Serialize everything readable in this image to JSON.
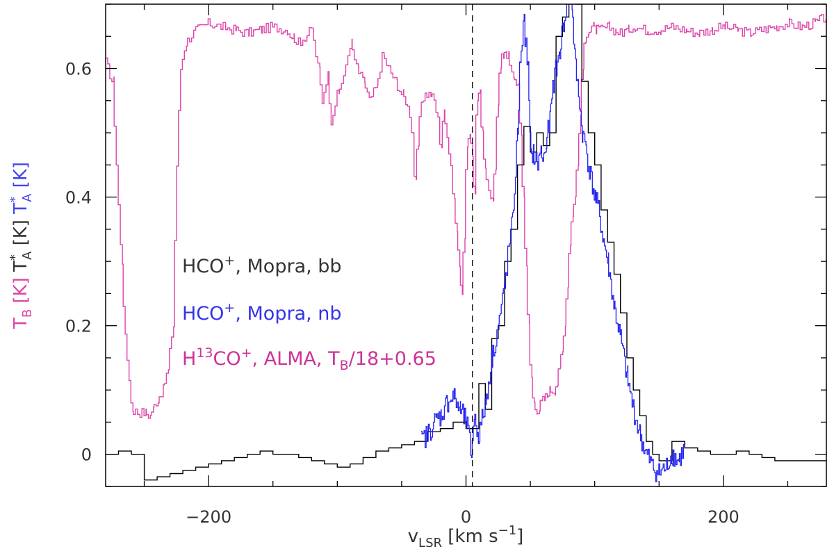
{
  "chart_data": {
    "type": "line",
    "xlim": [
      -280,
      280
    ],
    "ylim": [
      -0.05,
      0.7
    ],
    "step_plot": true,
    "grid": false,
    "legend_placement": "middle-left, inside plot",
    "x_ticks": [
      -200,
      0,
      200
    ],
    "x_tick_labels": [
      "−200",
      "0",
      "200"
    ],
    "y_ticks": [
      0,
      0.2,
      0.4,
      0.6
    ],
    "y_tick_labels": [
      "0",
      "0.2",
      "0.4",
      "0.6"
    ],
    "xlabel": {
      "base": "v",
      "sub": "LSR",
      "mid": " [km s",
      "sup": "−1",
      "end": "]"
    },
    "ylabel_parts": [
      {
        "base": "T",
        "sub": "B",
        "unit": " [K] ",
        "color": "#dd44aa"
      },
      {
        "base": "T",
        "sup": "*",
        "sub": "A",
        "unit": " [K] ",
        "color": "#333333"
      },
      {
        "base": "T",
        "sup": "*",
        "sub": "A",
        "unit": " [K]",
        "color": "#4444ee"
      }
    ],
    "vline": {
      "x": 5,
      "style": "dashed",
      "color": "#000000"
    },
    "legend": [
      {
        "pre": "HCO",
        "sup": "+",
        "post": ", Mopra, bb",
        "color": "#333333"
      },
      {
        "pre": "HCO",
        "sup": "+",
        "post": ", Mopra, nb",
        "color": "#3333ee"
      },
      {
        "pre": "H",
        "sup": "13",
        "mid": "CO",
        "sup2": "+",
        "post": ", ALMA, T",
        "sub": "B",
        "tail": "/18+0.65",
        "color": "#cc3399"
      }
    ],
    "series": [
      {
        "color": "#dd44aa",
        "x": [
          -280,
          -275,
          -268,
          -265,
          -262,
          -260,
          -255,
          -250,
          -246,
          -244,
          -240,
          -236,
          -232,
          -228,
          -225,
          -222,
          -218,
          -210,
          -200,
          -190,
          -180,
          -170,
          -160,
          -150,
          -140,
          -135,
          -130,
          -125,
          -120,
          -115,
          -112,
          -108,
          -105,
          -100,
          -95,
          -90,
          -85,
          -80,
          -75,
          -70,
          -65,
          -60,
          -55,
          -50,
          -47,
          -44,
          -42,
          -40,
          -38,
          -35,
          -32,
          -28,
          -25,
          -22,
          -20,
          -18,
          -15,
          -12,
          -10,
          -8,
          -6,
          -4,
          -2,
          0,
          2,
          4,
          6,
          8,
          10,
          12,
          14,
          16,
          18,
          20,
          22,
          24,
          26,
          28,
          30,
          32,
          34,
          36,
          38,
          40,
          42,
          44,
          46,
          48,
          50,
          52,
          54,
          56,
          58,
          60,
          62,
          64,
          66,
          68,
          70,
          72,
          74,
          76,
          78,
          80,
          82,
          84,
          86,
          88,
          90,
          92,
          94,
          96,
          98,
          100,
          105,
          110,
          115,
          120,
          125,
          130,
          140,
          150,
          160,
          170,
          180,
          190,
          200,
          210,
          220,
          230,
          240,
          250,
          260,
          270,
          280
        ],
        "y": [
          0.61,
          0.58,
          0.3,
          0.18,
          0.12,
          0.07,
          0.065,
          0.065,
          0.06,
          0.07,
          0.085,
          0.1,
          0.13,
          0.2,
          0.45,
          0.6,
          0.64,
          0.66,
          0.67,
          0.665,
          0.66,
          0.655,
          0.66,
          0.665,
          0.66,
          0.65,
          0.64,
          0.65,
          0.66,
          0.6,
          0.55,
          0.59,
          0.52,
          0.56,
          0.59,
          0.64,
          0.6,
          0.58,
          0.55,
          0.57,
          0.62,
          0.6,
          0.58,
          0.56,
          0.55,
          0.53,
          0.5,
          0.42,
          0.48,
          0.55,
          0.56,
          0.56,
          0.55,
          0.52,
          0.48,
          0.53,
          0.5,
          0.45,
          0.4,
          0.35,
          0.3,
          0.25,
          0.33,
          0.48,
          0.5,
          0.47,
          0.4,
          0.55,
          0.57,
          0.5,
          0.45,
          0.42,
          0.4,
          0.39,
          0.45,
          0.55,
          0.6,
          0.62,
          0.63,
          0.62,
          0.6,
          0.59,
          0.58,
          0.57,
          0.5,
          0.4,
          0.3,
          0.2,
          0.12,
          0.08,
          0.07,
          0.07,
          0.08,
          0.085,
          0.09,
          0.1,
          0.1,
          0.1,
          0.11,
          0.13,
          0.16,
          0.2,
          0.26,
          0.33,
          0.37,
          0.4,
          0.45,
          0.52,
          0.6,
          0.64,
          0.66,
          0.66,
          0.665,
          0.66,
          0.66,
          0.665,
          0.66,
          0.655,
          0.66,
          0.665,
          0.66,
          0.66,
          0.665,
          0.66,
          0.655,
          0.66,
          0.665,
          0.66,
          0.655,
          0.66,
          0.665,
          0.67,
          0.665,
          0.67,
          0.68
        ],
        "noise": 0.008
      },
      {
        "color": "#000000",
        "x": [
          -280,
          -270,
          -260,
          -250,
          -240,
          -230,
          -220,
          -210,
          -200,
          -190,
          -180,
          -170,
          -160,
          -150,
          -140,
          -130,
          -120,
          -110,
          -100,
          -90,
          -80,
          -70,
          -60,
          -50,
          -40,
          -30,
          -20,
          -10,
          0,
          10,
          15,
          20,
          25,
          30,
          35,
          40,
          45,
          50,
          55,
          60,
          65,
          70,
          75,
          80,
          85,
          90,
          95,
          100,
          105,
          110,
          115,
          120,
          125,
          130,
          135,
          140,
          145,
          150,
          160,
          170,
          180,
          190,
          200,
          210,
          220,
          230,
          240,
          250,
          260,
          270,
          280
        ],
        "y": [
          0.0,
          0.005,
          0.0,
          -0.04,
          -0.035,
          -0.03,
          -0.025,
          -0.02,
          -0.015,
          -0.01,
          -0.005,
          0.0,
          0.005,
          0.0,
          0.0,
          -0.005,
          -0.01,
          -0.015,
          -0.02,
          -0.015,
          -0.005,
          0.005,
          0.01,
          0.015,
          0.02,
          0.035,
          0.04,
          0.05,
          0.04,
          0.11,
          0.07,
          0.18,
          0.2,
          0.3,
          0.35,
          0.45,
          0.51,
          0.47,
          0.5,
          0.48,
          0.5,
          0.65,
          0.68,
          0.72,
          0.7,
          0.58,
          0.5,
          0.45,
          0.38,
          0.33,
          0.28,
          0.22,
          0.15,
          0.1,
          0.06,
          0.02,
          0.0,
          -0.01,
          0.02,
          0.01,
          0.005,
          0.0,
          0.0,
          0.005,
          0.0,
          -0.005,
          -0.01,
          -0.01,
          -0.01,
          -0.01,
          -0.01
        ],
        "noise": 0.006
      },
      {
        "color": "#2222ee",
        "x": [
          -35,
          -30,
          -25,
          -20,
          -15,
          -10,
          -5,
          0,
          2,
          4,
          6,
          8,
          10,
          15,
          20,
          25,
          30,
          33,
          36,
          40,
          42,
          45,
          48,
          50,
          52,
          55,
          58,
          60,
          62,
          65,
          68,
          70,
          72,
          75,
          78,
          80,
          82,
          85,
          88,
          90,
          93,
          95,
          98,
          100,
          103,
          106,
          110,
          115,
          120,
          125,
          130,
          135,
          140,
          145,
          150,
          155,
          160,
          165,
          170
        ],
        "y": [
          0.02,
          0.03,
          0.05,
          0.06,
          0.08,
          0.09,
          0.07,
          0.05,
          0.03,
          0.0,
          0.06,
          0.04,
          0.03,
          0.08,
          0.15,
          0.2,
          0.26,
          0.32,
          0.36,
          0.5,
          0.62,
          0.67,
          0.6,
          0.46,
          0.47,
          0.45,
          0.47,
          0.46,
          0.48,
          0.52,
          0.58,
          0.6,
          0.62,
          0.66,
          0.7,
          0.74,
          0.7,
          0.6,
          0.55,
          0.5,
          0.48,
          0.45,
          0.42,
          0.4,
          0.38,
          0.34,
          0.3,
          0.23,
          0.18,
          0.12,
          0.07,
          0.03,
          0.0,
          -0.02,
          -0.03,
          -0.02,
          0.0,
          -0.01,
          0.01
        ],
        "noise": 0.018
      }
    ]
  }
}
